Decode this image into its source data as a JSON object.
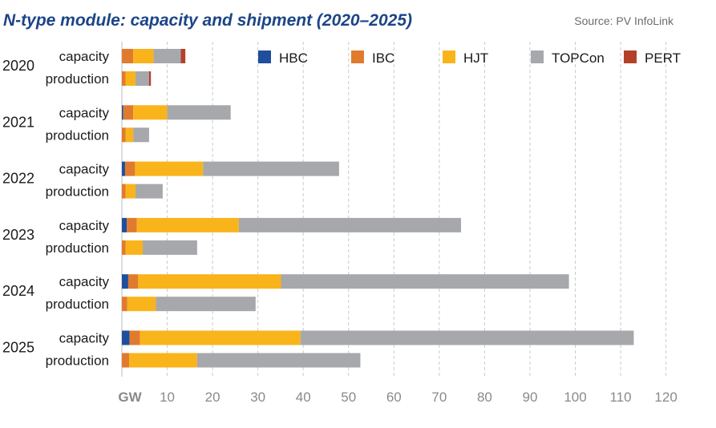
{
  "chart_data": {
    "type": "bar",
    "orientation": "horizontal",
    "stacked": true,
    "title": "N-type module: capacity and shipment (2020–2025)",
    "source": "Source: PV InfoLink",
    "unit": "GW",
    "xlim": [
      0,
      120
    ],
    "xticks": [
      10,
      20,
      30,
      40,
      50,
      60,
      70,
      80,
      90,
      100,
      110,
      120
    ],
    "grid": "vertical",
    "legend_position": "top-right",
    "series": [
      {
        "name": "HBC",
        "color": "#1f4e9c"
      },
      {
        "name": "IBC",
        "color": "#e07b2e"
      },
      {
        "name": "HJT",
        "color": "#f9b41b"
      },
      {
        "name": "TOPCon",
        "color": "#a6a8ab"
      },
      {
        "name": "PERT",
        "color": "#b5402a"
      }
    ],
    "groups": [
      {
        "year": "2020",
        "rows": [
          {
            "label": "capacity",
            "values": [
              0,
              2.5,
              4.5,
              6,
              1
            ]
          },
          {
            "label": "production",
            "values": [
              0,
              0.8,
              2.2,
              3,
              0.4
            ]
          }
        ]
      },
      {
        "year": "2021",
        "rows": [
          {
            "label": "capacity",
            "values": [
              0.3,
              2.2,
              7.5,
              14,
              0
            ]
          },
          {
            "label": "production",
            "values": [
              0,
              0.8,
              1.7,
              3.5,
              0
            ]
          }
        ]
      },
      {
        "year": "2022",
        "rows": [
          {
            "label": "capacity",
            "values": [
              0.7,
              2.2,
              15,
              30,
              0
            ]
          },
          {
            "label": "production",
            "values": [
              0,
              0.8,
              2.2,
              6,
              0
            ]
          }
        ]
      },
      {
        "year": "2023",
        "rows": [
          {
            "label": "capacity",
            "values": [
              1.1,
              2.2,
              22.5,
              49,
              0
            ]
          },
          {
            "label": "production",
            "values": [
              0,
              0.8,
              3.8,
              12,
              0
            ]
          }
        ]
      },
      {
        "year": "2024",
        "rows": [
          {
            "label": "capacity",
            "values": [
              1.4,
              2.2,
              31.5,
              63.5,
              0
            ]
          },
          {
            "label": "production",
            "values": [
              0,
              1.2,
              6.3,
              22,
              0
            ]
          }
        ]
      },
      {
        "year": "2025",
        "rows": [
          {
            "label": "capacity",
            "values": [
              1.7,
              2.3,
              35.4,
              73.5,
              0
            ]
          },
          {
            "label": "production",
            "values": [
              0,
              1.6,
              15,
              36,
              0
            ]
          }
        ]
      }
    ]
  }
}
